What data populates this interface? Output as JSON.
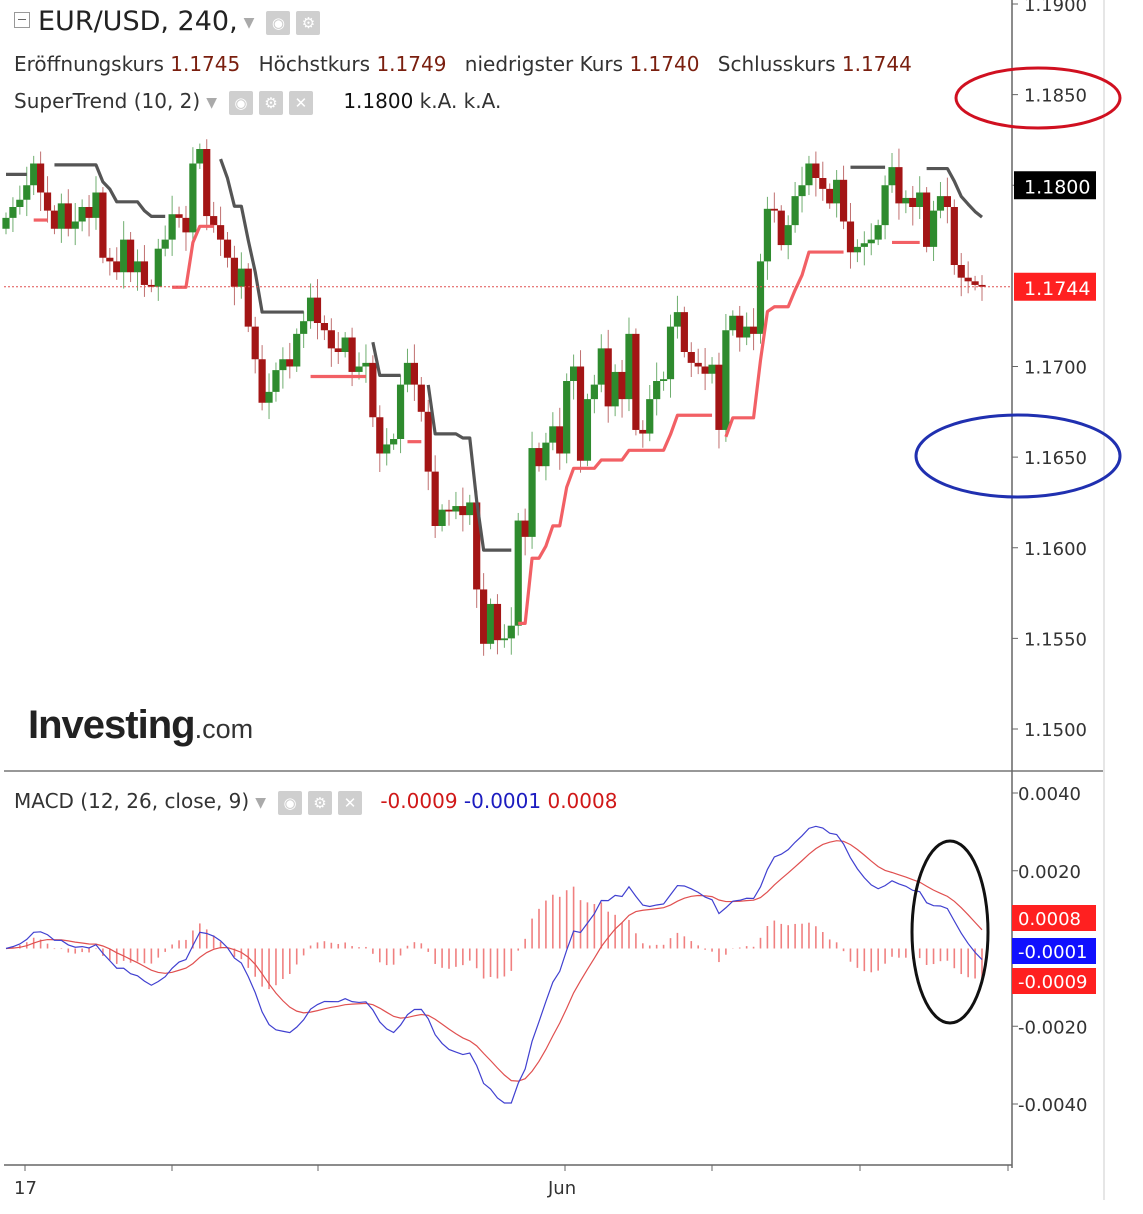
{
  "header": {
    "symbol": "EUR/USD, 240,",
    "ohlc": [
      {
        "label": "Eröffnungskurs",
        "value": "1.1745"
      },
      {
        "label": "Höchstkurs",
        "value": "1.1749"
      },
      {
        "label": "niedrigster Kurs",
        "value": "1.1740"
      },
      {
        "label": "Schlusskurs",
        "value": "1.1744"
      }
    ],
    "supertrend": {
      "label": "SuperTrend (10, 2)",
      "value": "1.1800",
      "v2": "k.A.",
      "v3": "k.A."
    },
    "macd": {
      "label": "MACD (12, 26, close, 9)",
      "v1": "-0.0009",
      "v2": "-0.0001",
      "v3": "0.0008"
    }
  },
  "brand": {
    "name": "Investing",
    "suffix": ".com"
  },
  "colors": {
    "bull": "#2e8b2e",
    "bear": "#a31515",
    "wick": "#8a8a8a",
    "st_up": "#f26065",
    "st_down": "#555555",
    "macd_line": "#4040d0",
    "signal_line": "#e05050",
    "hist": "#f08080",
    "circle_red": "#d01020",
    "circle_blue": "#2030b0",
    "circle_black": "#111111"
  },
  "chart_data": [
    {
      "type": "candlestick",
      "title": "EUR/USD, 240,",
      "ylim": [
        1.148,
        1.19
      ],
      "y_ticks": [
        "1.1900",
        "1.1850",
        "1.1800",
        "1.1700",
        "1.1650",
        "1.1600",
        "1.1550",
        "1.1500"
      ],
      "x_ticks": [
        "17",
        "Jun"
      ],
      "last_price": "1.1744",
      "supertrend_label": "1.1800",
      "closes": [
        1.1782,
        1.1788,
        1.1792,
        1.18,
        1.1812,
        1.1796,
        1.1786,
        1.1776,
        1.179,
        1.1776,
        1.178,
        1.1788,
        1.1782,
        1.1796,
        1.176,
        1.1758,
        1.1752,
        1.177,
        1.1752,
        1.1758,
        1.1745,
        1.1744,
        1.1765,
        1.177,
        1.1784,
        1.1782,
        1.1774,
        1.1812,
        1.182,
        1.1783,
        1.1778,
        1.177,
        1.176,
        1.1744,
        1.1754,
        1.1722,
        1.1704,
        1.168,
        1.1686,
        1.1698,
        1.1704,
        1.17,
        1.1718,
        1.1725,
        1.1738,
        1.1724,
        1.172,
        1.171,
        1.1708,
        1.1716,
        1.1697,
        1.17,
        1.1702,
        1.1672,
        1.1652,
        1.1657,
        1.166,
        1.169,
        1.1702,
        1.169,
        1.1675,
        1.1642,
        1.1612,
        1.1621,
        1.162,
        1.1623,
        1.1618,
        1.1625,
        1.1577,
        1.1547,
        1.1569,
        1.1549,
        1.155,
        1.1557,
        1.1615,
        1.1606,
        1.1655,
        1.1645,
        1.1658,
        1.1667,
        1.1652,
        1.1692,
        1.17,
        1.1648,
        1.1682,
        1.169,
        1.171,
        1.1678,
        1.1697,
        1.1682,
        1.1718,
        1.1665,
        1.1663,
        1.1682,
        1.1692,
        1.1693,
        1.1722,
        1.173,
        1.1708,
        1.1702,
        1.17,
        1.1696,
        1.1701,
        1.1665,
        1.172,
        1.1728,
        1.1716,
        1.1722,
        1.1718,
        1.1758,
        1.1787,
        1.1786,
        1.1767,
        1.1778,
        1.1794,
        1.18,
        1.1812,
        1.1804,
        1.1798,
        1.179,
        1.1803,
        1.178,
        1.1763,
        1.1766,
        1.1768,
        1.177,
        1.1778,
        1.18,
        1.181,
        1.179,
        1.1793,
        1.1788,
        1.1796,
        1.1766,
        1.1786,
        1.1794,
        1.1788,
        1.1756,
        1.1749,
        1.1747,
        1.1745,
        1.1744
      ],
      "series": [
        {
          "name": "SuperTrend (10, 2)",
          "type": "stepline"
        },
        {
          "name": "Schlusskurs",
          "type": "candles"
        }
      ]
    },
    {
      "type": "line",
      "title": "MACD (12, 26, close, 9)",
      "ylim": [
        -0.0052,
        0.0044
      ],
      "y_ticks": [
        "0.0040",
        "0.0020",
        "-0.0020",
        "-0.0040"
      ],
      "value_labels": [
        "0.0008",
        "-0.0001",
        "-0.0009"
      ],
      "series": [
        {
          "name": "MACD",
          "values_ref": "computed from closes (12,26)"
        },
        {
          "name": "Signal",
          "values_ref": "computed (9)"
        },
        {
          "name": "Histogram",
          "values_ref": "MACD - Signal"
        }
      ]
    }
  ]
}
